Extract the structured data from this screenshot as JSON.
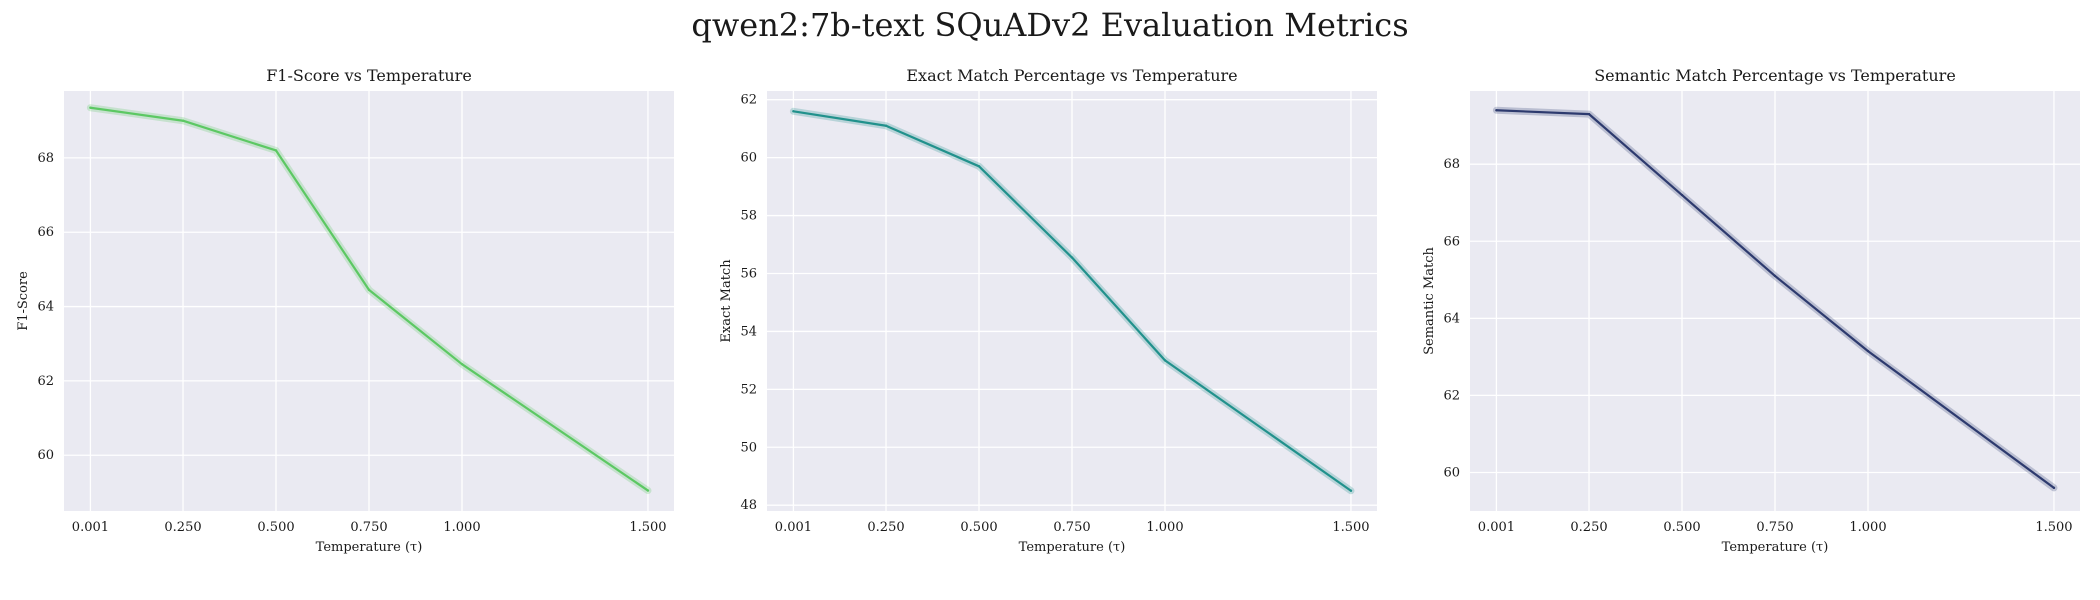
{
  "figure": {
    "suptitle": "qwen2:7b-text SQuADv2 Evaluation Metrics"
  },
  "chart_data": [
    {
      "type": "line",
      "title": "F1-Score vs Temperature",
      "xlabel": "Temperature (τ)",
      "ylabel": "F1-Score",
      "x": [
        0.001,
        0.25,
        0.5,
        0.75,
        1.0,
        1.5
      ],
      "x_tick_labels": [
        "0.001",
        "0.250",
        "0.500",
        "0.750",
        "1.000",
        "1.500"
      ],
      "y_ticks": [
        60,
        62,
        64,
        66,
        68
      ],
      "xlim": [
        -0.07,
        1.57
      ],
      "ylim": [
        58.5,
        69.8
      ],
      "grid": true,
      "series": [
        {
          "values": [
            69.35,
            69.0,
            68.2,
            64.45,
            62.45,
            59.05
          ],
          "color": "#5cc863"
        }
      ]
    },
    {
      "type": "line",
      "title": "Exact Match Percentage vs Temperature",
      "xlabel": "Temperature (τ)",
      "ylabel": "Exact Match",
      "x": [
        0.001,
        0.25,
        0.5,
        0.75,
        1.0,
        1.5
      ],
      "x_tick_labels": [
        "0.001",
        "0.250",
        "0.500",
        "0.750",
        "1.000",
        "1.500"
      ],
      "y_ticks": [
        48,
        50,
        52,
        54,
        56,
        58,
        60,
        62
      ],
      "xlim": [
        -0.07,
        1.57
      ],
      "ylim": [
        47.8,
        62.3
      ],
      "grid": true,
      "series": [
        {
          "values": [
            61.6,
            61.1,
            59.7,
            56.55,
            53.0,
            48.5
          ],
          "color": "#21918c"
        }
      ]
    },
    {
      "type": "line",
      "title": "Semantic Match Percentage vs Temperature",
      "xlabel": "Temperature (τ)",
      "ylabel": "Semantic Match",
      "x": [
        0.001,
        0.25,
        0.5,
        0.75,
        1.0,
        1.5
      ],
      "x_tick_labels": [
        "0.001",
        "0.250",
        "0.500",
        "0.750",
        "1.000",
        "1.500"
      ],
      "y_ticks": [
        60,
        62,
        64,
        66,
        68
      ],
      "xlim": [
        -0.07,
        1.57
      ],
      "ylim": [
        59.0,
        69.9
      ],
      "grid": true,
      "series": [
        {
          "values": [
            69.4,
            69.3,
            67.2,
            65.1,
            63.15,
            59.6
          ],
          "color": "#2d3a6e"
        }
      ]
    }
  ],
  "style": {
    "axes_bg": "#eaeaf2",
    "grid_color": "#ffffff",
    "text_color": "#1a1a1a"
  }
}
